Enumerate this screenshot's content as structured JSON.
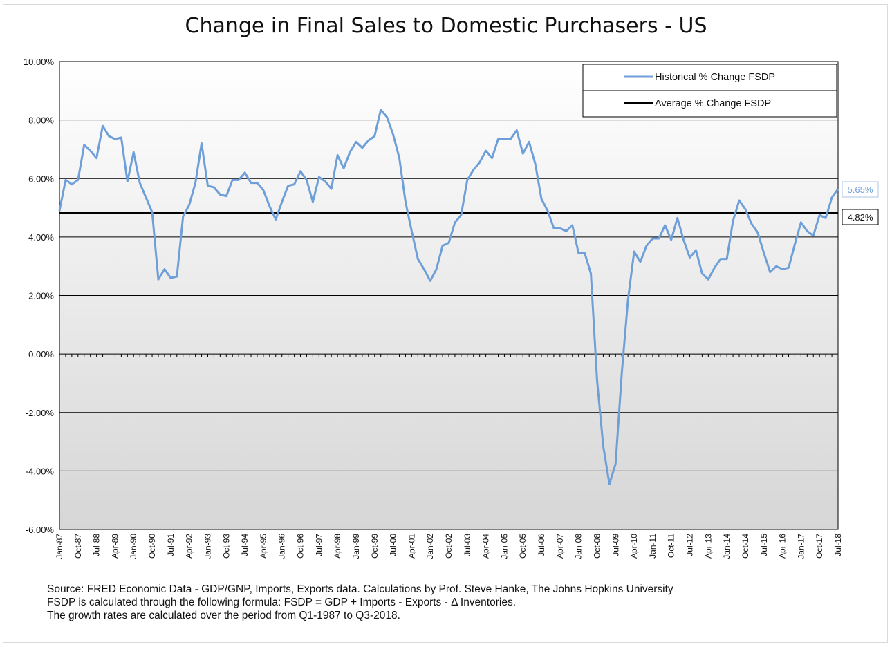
{
  "chart_data": {
    "type": "line",
    "title": "Change in Final Sales to Domestic Purchasers - US",
    "xlabel": "",
    "ylabel": "",
    "ylim": [
      -6,
      10
    ],
    "y_ticks": [
      "10.00%",
      "8.00%",
      "6.00%",
      "4.00%",
      "2.00%",
      "0.00%",
      "-2.00%",
      "-4.00%",
      "-6.00%"
    ],
    "y_tick_values": [
      10,
      8,
      6,
      4,
      2,
      0,
      -2,
      -4,
      -6
    ],
    "x_tick_labels": [
      "Jan-87",
      "Oct-87",
      "Jul-88",
      "Apr-89",
      "Jan-90",
      "Oct-90",
      "Jul-91",
      "Apr-92",
      "Jan-93",
      "Oct-93",
      "Jul-94",
      "Apr-95",
      "Jan-96",
      "Oct-96",
      "Jul-97",
      "Apr-98",
      "Jan-99",
      "Oct-99",
      "Jul-00",
      "Apr-01",
      "Jan-02",
      "Oct-02",
      "Jul-03",
      "Apr-04",
      "Jan-05",
      "Oct-05",
      "Jul-06",
      "Apr-07",
      "Jan-08",
      "Oct-08",
      "Jul-09",
      "Apr-10",
      "Jan-11",
      "Oct-11",
      "Jul-12",
      "Apr-13",
      "Jan-14",
      "Oct-14",
      "Jul-15",
      "Apr-16",
      "Jan-17",
      "Oct-17",
      "Jul-18"
    ],
    "grid": true,
    "legend_position": "top-right",
    "colors": {
      "historical": "#6f9fd8",
      "average": "#000000"
    },
    "series": [
      {
        "name": "Historical % Change FSDP",
        "values": [
          4.9,
          5.95,
          5.8,
          5.95,
          7.15,
          6.95,
          6.7,
          7.8,
          7.45,
          7.35,
          7.4,
          5.9,
          6.9,
          5.85,
          5.35,
          4.85,
          2.55,
          2.9,
          2.6,
          2.65,
          4.7,
          5.1,
          5.85,
          7.2,
          5.75,
          5.7,
          5.45,
          5.4,
          5.95,
          5.95,
          6.2,
          5.85,
          5.85,
          5.6,
          5.05,
          4.6,
          5.2,
          5.75,
          5.8,
          6.25,
          5.95,
          5.2,
          6.05,
          5.9,
          5.65,
          6.8,
          6.35,
          6.9,
          7.25,
          7.05,
          7.3,
          7.45,
          8.35,
          8.1,
          7.5,
          6.7,
          5.2,
          4.2,
          3.25,
          2.9,
          2.5,
          2.9,
          3.7,
          3.8,
          4.5,
          4.75,
          5.95,
          6.3,
          6.55,
          6.95,
          6.7,
          7.35,
          7.35,
          7.35,
          7.65,
          6.85,
          7.25,
          6.5,
          5.3,
          4.9,
          4.3,
          4.3,
          4.2,
          4.4,
          3.45,
          3.45,
          2.75,
          -0.9,
          -3.15,
          -4.45,
          -3.75,
          -0.65,
          1.85,
          3.5,
          3.15,
          3.7,
          3.95,
          3.95,
          4.4,
          3.9,
          4.65,
          3.9,
          3.3,
          3.55,
          2.75,
          2.55,
          2.95,
          3.25,
          3.25,
          4.55,
          5.25,
          4.95,
          4.45,
          4.15,
          3.45,
          2.8,
          3.0,
          2.9,
          2.95,
          3.75,
          4.5,
          4.2,
          4.05,
          4.75,
          4.65,
          5.35,
          5.65
        ]
      },
      {
        "name": "Average % Change FSDP",
        "values": [
          4.82
        ]
      }
    ],
    "annotations": [
      {
        "label": "5.65%",
        "value": 5.65
      },
      {
        "label": "4.82%",
        "value": 4.82
      }
    ]
  },
  "footnote": {
    "line1": "Source: FRED Economic Data - GDP/GNP, Imports, Exports data. Calculations by Prof. Steve Hanke, The Johns Hopkins University",
    "line2": "FSDP is calculated through the following formula: FSDP = GDP + Imports - Exports - Δ Inventories.",
    "line3": "The growth rates are calculated over the period from Q1-1987 to Q3-2018."
  }
}
